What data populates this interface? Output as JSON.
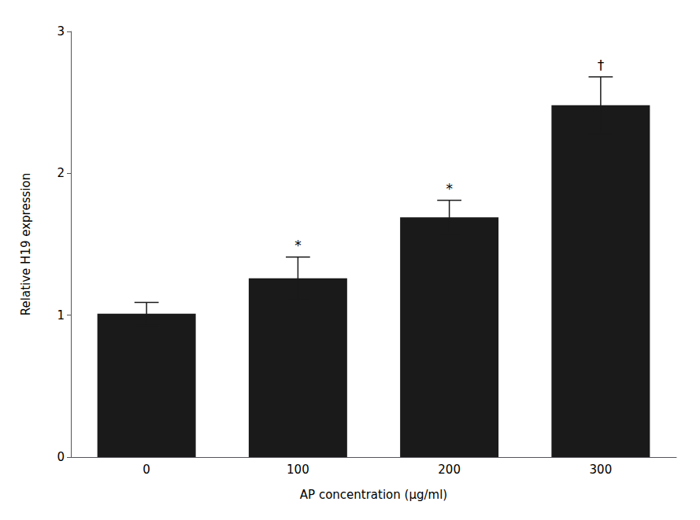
{
  "chart_data": {
    "type": "bar",
    "categories": [
      "0",
      "100",
      "200",
      "300"
    ],
    "values": [
      1.01,
      1.26,
      1.69,
      2.48
    ],
    "errors": [
      0.08,
      0.15,
      0.12,
      0.2
    ],
    "color": "#1a1a1a",
    "xlabel": "AP concentration (μg/ml)",
    "ylabel": "Relative H19 expression",
    "ylim": [
      0,
      3.0
    ],
    "yticks": [
      0,
      1,
      2,
      3
    ],
    "annotations": [
      {
        "category": "100",
        "text": "*"
      },
      {
        "category": "200",
        "text": "*"
      },
      {
        "category": "300",
        "text": "†"
      }
    ],
    "grid": false
  }
}
